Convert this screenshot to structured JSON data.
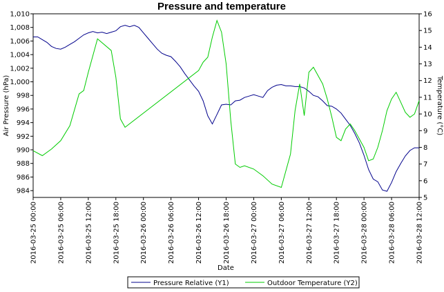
{
  "chart_data": {
    "type": "line",
    "title": "Pressure and temperature",
    "xlabel": "Date",
    "ylabel_left": "Air Pressure (hPa)",
    "ylabel_right": "Temperature (°C)",
    "y1lim": [
      983,
      1010
    ],
    "y2lim": [
      5,
      16
    ],
    "y1ticks": [
      "984",
      "986",
      "988",
      "990",
      "992",
      "994",
      "996",
      "998",
      "1,000",
      "1,002",
      "1,004",
      "1,006",
      "1,008",
      "1,010"
    ],
    "y2ticks": [
      "5",
      "6",
      "7",
      "8",
      "9",
      "10",
      "11",
      "12",
      "13",
      "14",
      "15",
      "16"
    ],
    "x_ticks": [
      "2016-03-25 00:00",
      "2016-03-25 06:00",
      "2016-03-25 12:00",
      "2016-03-25 18:00",
      "2016-03-26 00:00",
      "2016-03-26 06:00",
      "2016-03-26 12:00",
      "2016-03-26 18:00",
      "2016-03-27 00:00",
      "2016-03-27 06:00",
      "2016-03-27 12:00",
      "2016-03-27 18:00",
      "2016-03-28 00:00",
      "2016-03-28 06:00",
      "2016-03-28 12:00"
    ],
    "xlim": [
      "2016-03-25 00:00",
      "2016-03-28 12:00"
    ],
    "grid": false,
    "legend_position": "bottom-center",
    "series": [
      {
        "name": "Pressure Relative (Y1)",
        "axis": "left",
        "color": "#00008B",
        "x": [
          "2016-03-25 00:00",
          "2016-03-25 01:00",
          "2016-03-25 02:00",
          "2016-03-25 03:00",
          "2016-03-25 04:00",
          "2016-03-25 05:00",
          "2016-03-25 06:00",
          "2016-03-25 07:00",
          "2016-03-25 08:00",
          "2016-03-25 09:00",
          "2016-03-25 10:00",
          "2016-03-25 11:00",
          "2016-03-25 12:00",
          "2016-03-25 13:00",
          "2016-03-25 14:00",
          "2016-03-25 15:00",
          "2016-03-25 16:00",
          "2016-03-25 17:00",
          "2016-03-25 18:00",
          "2016-03-25 19:00",
          "2016-03-25 20:00",
          "2016-03-25 21:00",
          "2016-03-25 22:00",
          "2016-03-25 23:00",
          "2016-03-26 00:00",
          "2016-03-26 01:00",
          "2016-03-26 02:00",
          "2016-03-26 03:00",
          "2016-03-26 04:00",
          "2016-03-26 05:00",
          "2016-03-26 06:00",
          "2016-03-26 07:00",
          "2016-03-26 08:00",
          "2016-03-26 09:00",
          "2016-03-26 10:00",
          "2016-03-26 11:00",
          "2016-03-26 12:00",
          "2016-03-26 13:00",
          "2016-03-26 14:00",
          "2016-03-26 15:00",
          "2016-03-26 16:00",
          "2016-03-26 17:00",
          "2016-03-26 18:00",
          "2016-03-26 19:00",
          "2016-03-26 20:00",
          "2016-03-26 21:00",
          "2016-03-26 22:00",
          "2016-03-26 23:00",
          "2016-03-27 00:00",
          "2016-03-27 01:00",
          "2016-03-27 02:00",
          "2016-03-27 03:00",
          "2016-03-27 04:00",
          "2016-03-27 05:00",
          "2016-03-27 06:00",
          "2016-03-27 07:00",
          "2016-03-27 08:00",
          "2016-03-27 09:00",
          "2016-03-27 10:00",
          "2016-03-27 11:00",
          "2016-03-27 12:00",
          "2016-03-27 13:00",
          "2016-03-27 14:00",
          "2016-03-27 15:00",
          "2016-03-27 16:00",
          "2016-03-27 17:00",
          "2016-03-27 18:00",
          "2016-03-27 19:00",
          "2016-03-27 20:00",
          "2016-03-27 21:00",
          "2016-03-27 22:00",
          "2016-03-27 23:00",
          "2016-03-28 00:00",
          "2016-03-28 01:00",
          "2016-03-28 02:00",
          "2016-03-28 03:00",
          "2016-03-28 04:00",
          "2016-03-28 05:00",
          "2016-03-28 06:00",
          "2016-03-28 07:00",
          "2016-03-28 08:00",
          "2016-03-28 09:00",
          "2016-03-28 10:00",
          "2016-03-28 11:00",
          "2016-03-28 12:00"
        ],
        "y": [
          1006.6,
          1006.6,
          1006.2,
          1005.8,
          1005.2,
          1004.9,
          1004.8,
          1005.1,
          1005.5,
          1005.9,
          1006.4,
          1006.9,
          1007.2,
          1007.4,
          1007.2,
          1007.3,
          1007.1,
          1007.3,
          1007.5,
          1008.1,
          1008.3,
          1008.1,
          1008.3,
          1008.0,
          1007.2,
          1006.4,
          1005.6,
          1004.8,
          1004.2,
          1003.9,
          1003.7,
          1003.0,
          1002.2,
          1001.2,
          1000.3,
          999.4,
          998.6,
          997.2,
          995.0,
          993.8,
          995.2,
          996.6,
          996.7,
          996.6,
          997.2,
          997.3,
          997.7,
          997.9,
          998.1,
          997.9,
          997.7,
          998.7,
          999.2,
          999.5,
          999.6,
          999.4,
          999.4,
          999.3,
          999.3,
          999.1,
          998.6,
          998.0,
          997.8,
          997.2,
          996.5,
          996.4,
          996.0,
          995.4,
          994.5,
          993.6,
          992.4,
          991.0,
          989.2,
          987.1,
          985.7,
          985.3,
          984.1,
          983.9,
          985.2,
          986.8,
          988.0,
          989.1,
          989.9,
          990.3,
          990.3
        ]
      },
      {
        "name": "Outdoor Temperature (Y2)",
        "axis": "right",
        "color": "#00CC00",
        "x": [
          "2016-03-25 00:00",
          "2016-03-25 02:00",
          "2016-03-25 04:00",
          "2016-03-25 06:00",
          "2016-03-25 08:00",
          "2016-03-25 10:00",
          "2016-03-25 11:00",
          "2016-03-25 12:00",
          "2016-03-25 14:00",
          "2016-03-25 17:00",
          "2016-03-25 18:00",
          "2016-03-25 19:00",
          "2016-03-25 20:00",
          "2016-03-26 12:00",
          "2016-03-26 13:00",
          "2016-03-26 14:00",
          "2016-03-26 15:00",
          "2016-03-26 16:00",
          "2016-03-26 17:00",
          "2016-03-26 18:00",
          "2016-03-26 19:00",
          "2016-03-26 20:00",
          "2016-03-26 21:00",
          "2016-03-26 22:00",
          "2016-03-27 00:00",
          "2016-03-27 02:00",
          "2016-03-27 04:00",
          "2016-03-27 06:00",
          "2016-03-27 08:00",
          "2016-03-27 09:00",
          "2016-03-27 10:00",
          "2016-03-27 11:00",
          "2016-03-27 12:00",
          "2016-03-27 13:00",
          "2016-03-27 15:00",
          "2016-03-27 16:00",
          "2016-03-27 17:00",
          "2016-03-27 18:00",
          "2016-03-27 19:00",
          "2016-03-27 20:00",
          "2016-03-27 21:00",
          "2016-03-27 22:00",
          "2016-03-28 00:00",
          "2016-03-28 01:00",
          "2016-03-28 02:00",
          "2016-03-28 03:00",
          "2016-03-28 04:00",
          "2016-03-28 05:00",
          "2016-03-28 06:00",
          "2016-03-28 07:00",
          "2016-03-28 08:00",
          "2016-03-28 09:00",
          "2016-03-28 10:00",
          "2016-03-28 11:00",
          "2016-03-28 12:00"
        ],
        "y": [
          7.8,
          7.5,
          7.9,
          8.4,
          9.3,
          11.2,
          11.4,
          12.5,
          14.5,
          13.8,
          12.2,
          9.7,
          9.2,
          12.6,
          13.1,
          13.4,
          14.6,
          15.6,
          14.9,
          13.0,
          9.6,
          7.0,
          6.8,
          6.9,
          6.7,
          6.3,
          5.8,
          5.6,
          7.6,
          10.2,
          11.8,
          9.9,
          12.5,
          12.8,
          11.8,
          10.9,
          9.8,
          8.6,
          8.4,
          9.1,
          9.4,
          9.0,
          8.0,
          7.2,
          7.3,
          8.0,
          9.0,
          10.2,
          10.9,
          11.3,
          10.7,
          10.1,
          9.8,
          10.0,
          10.8
        ]
      }
    ]
  }
}
